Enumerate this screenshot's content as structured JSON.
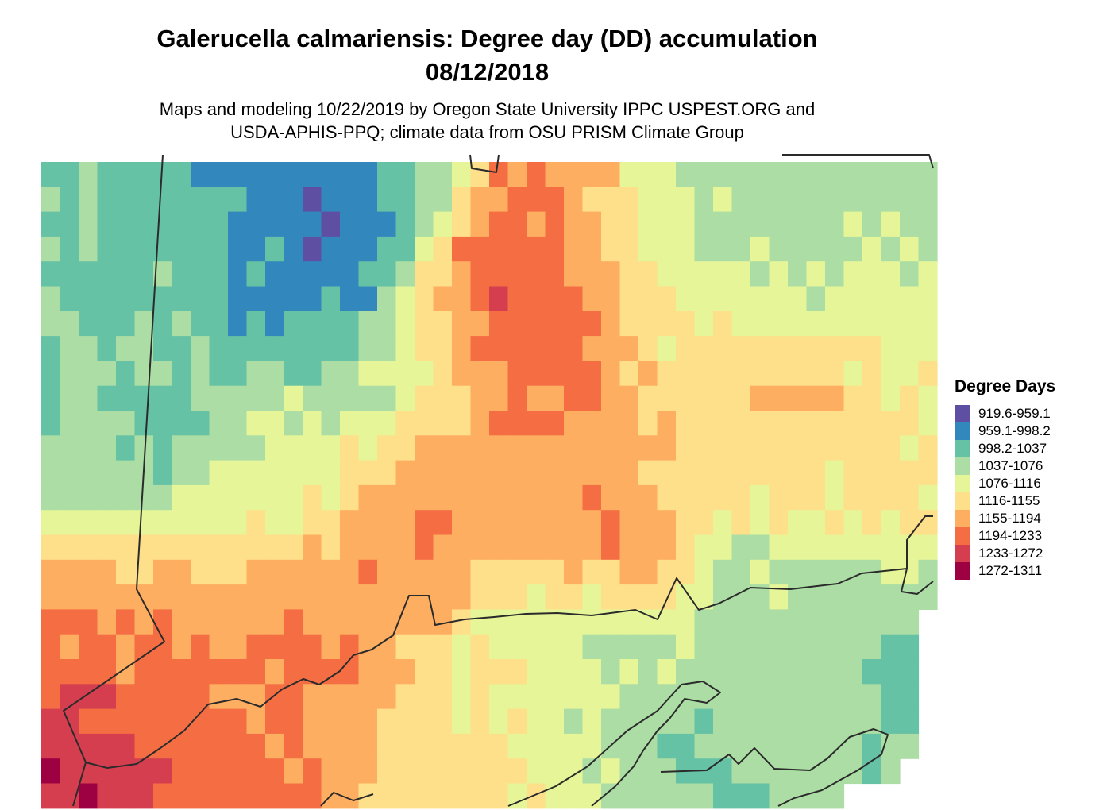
{
  "title": {
    "line1": "Galerucella calmariensis: Degree day (DD) accumulation",
    "line2": "08/12/2018"
  },
  "subtitle": {
    "line1": "Maps and modeling 10/22/2019 by Oregon State University IPPC USPEST.ORG and",
    "line2": "USDA-APHIS-PPQ; climate data from OSU PRISM Climate Group"
  },
  "legend": {
    "title": "Degree Days",
    "items": [
      {
        "label": "919.6-959.1",
        "color": "#5e4fa2"
      },
      {
        "label": "959.1-998.2",
        "color": "#3288bd"
      },
      {
        "label": "998.2-1037",
        "color": "#66c2a5"
      },
      {
        "label": "1037-1076",
        "color": "#abdda4"
      },
      {
        "label": "1076-1116",
        "color": "#e6f598"
      },
      {
        "label": "1116-1155",
        "color": "#fee08b"
      },
      {
        "label": "1155-1194",
        "color": "#fdae61"
      },
      {
        "label": "1194-1233",
        "color": "#f46d43"
      },
      {
        "label": "1233-1272",
        "color": "#d53e4f"
      },
      {
        "label": "1272-1311",
        "color": "#9e0142"
      }
    ]
  },
  "boundary_color": "#2b2b2b"
}
